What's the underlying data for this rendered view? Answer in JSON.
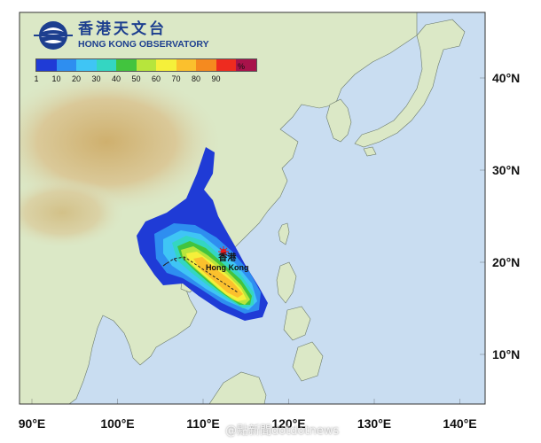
{
  "header": {
    "logo_icon": "hko-logo-icon",
    "org_name_cn": "香港天文台",
    "org_name_en": "HONG KONG OBSERVATORY"
  },
  "legend": {
    "unit": "%",
    "ticks": [
      "1",
      "10",
      "20",
      "30",
      "40",
      "50",
      "60",
      "70",
      "80",
      "90"
    ],
    "colors": [
      "#1f3bd6",
      "#2e8ef0",
      "#3fc5f5",
      "#34d6c2",
      "#42c43e",
      "#b7e53c",
      "#f5f03a",
      "#fbc02d",
      "#f58a1f",
      "#ee2b1f",
      "#a8124a"
    ]
  },
  "map": {
    "longitude_labels": [
      "90°E",
      "100°E",
      "110°E",
      "120°E",
      "130°E",
      "140°E"
    ],
    "latitude_labels": [
      "40°N",
      "30°N",
      "20°N",
      "10°N"
    ],
    "longitude_values": [
      90,
      100,
      110,
      120,
      130,
      140
    ],
    "latitude_values": [
      40,
      30,
      20,
      10
    ],
    "location_label_cn": "香港",
    "location_label_en": "Hong Kong",
    "location_marker_color": "#e41a1c",
    "ocean_color": "#c9ddf1",
    "land_color": "#dbe8c6",
    "highland_color": "#d9c38a"
  },
  "watermark": "@點新聞dotdotnews"
}
